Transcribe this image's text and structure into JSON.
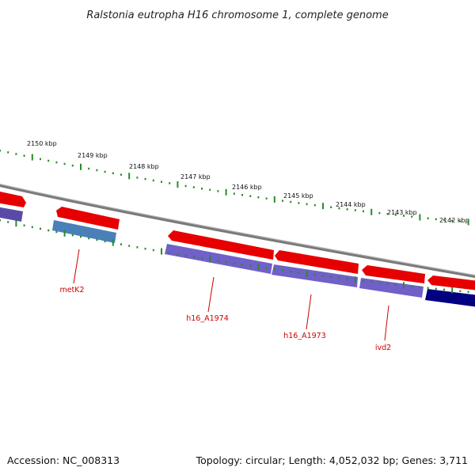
{
  "title": "Ralstonia eutropha H16 chromosome 1, complete genome",
  "footer": {
    "accession": "Accession: NC_008313",
    "summary": "Topology: circular; Length: 4,052,032 bp; Genes: 3,711"
  },
  "kbp_labels": [
    "2150 kbp",
    "2149 kbp",
    "2148 kbp",
    "2147 kbp",
    "2146 kbp",
    "2145 kbp",
    "2144 kbp",
    "2143 kbp",
    "2142 kbp"
  ],
  "genes": [
    {
      "label": "metK2"
    },
    {
      "label": "h16_A1974"
    },
    {
      "label": "h16_A1973"
    },
    {
      "label": "ivd2"
    }
  ],
  "colors": {
    "backbone": "#777777",
    "cds_forward": "#e60000",
    "cds_reverse": "#7060c8",
    "cds_reverse_alt": "#4a80b8",
    "cds_dark": "#000080",
    "tick": "#2a8a2a",
    "label": "#cc0000"
  }
}
